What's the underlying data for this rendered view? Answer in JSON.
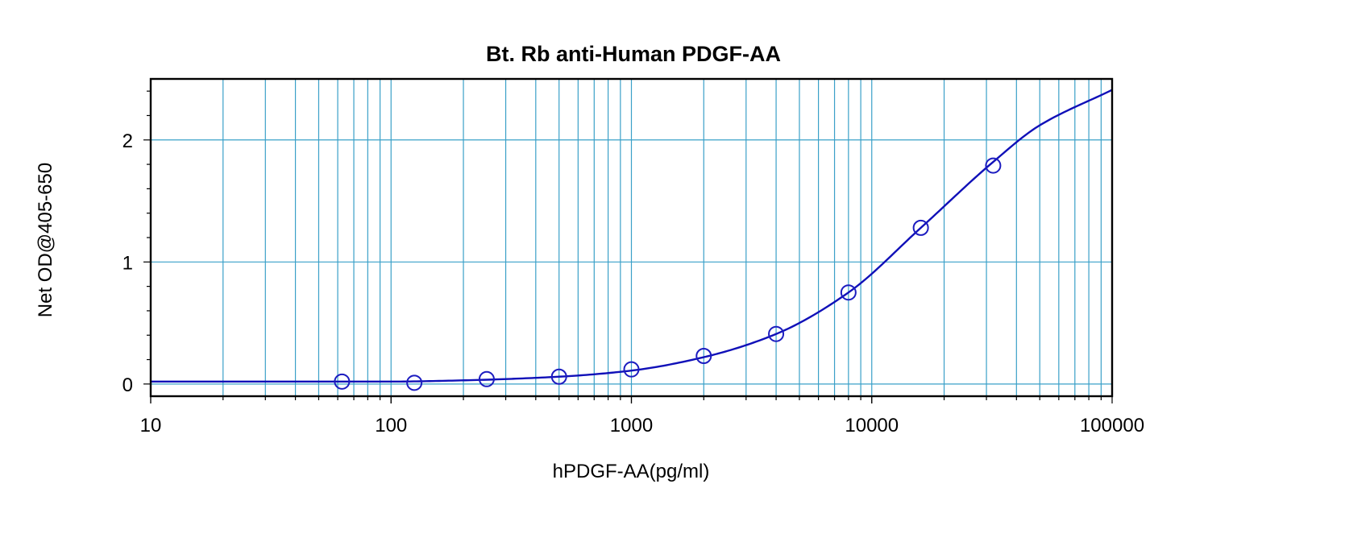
{
  "colors": {
    "grid": "#3aa0c8",
    "curve": "#1010b8",
    "marker": "#1c1cc0",
    "frame": "#000000",
    "background": "#ffffff"
  },
  "chart_data": {
    "type": "scatter",
    "title": "Bt. Rb anti-Human PDGF-AA",
    "xlabel": "hPDGF-AA(pg/ml)",
    "ylabel": "Net OD@405-650",
    "x_scale": "log",
    "xlim": [
      10,
      100000
    ],
    "ylim": [
      -0.1,
      2.5
    ],
    "grid": true,
    "x_ticks": [
      10,
      100,
      1000,
      10000,
      100000
    ],
    "x_tick_labels": [
      "10",
      "100",
      "1000",
      "10000",
      "100000"
    ],
    "y_ticks": [
      0,
      1,
      2
    ],
    "y_tick_labels": [
      "0",
      "1",
      "2"
    ],
    "points": {
      "x": [
        62.5,
        125,
        250,
        500,
        1000,
        2000,
        4000,
        8000,
        16000,
        32000
      ],
      "y": [
        0.02,
        0.01,
        0.04,
        0.06,
        0.12,
        0.23,
        0.41,
        0.75,
        1.28,
        1.79
      ]
    },
    "fit_curve": {
      "x": [
        10,
        30,
        100,
        200,
        500,
        1000,
        2000,
        4000,
        8000,
        16000,
        32000,
        50000,
        100000
      ],
      "y": [
        0.02,
        0.02,
        0.02,
        0.03,
        0.06,
        0.11,
        0.22,
        0.41,
        0.75,
        1.28,
        1.82,
        2.12,
        2.41
      ]
    }
  }
}
